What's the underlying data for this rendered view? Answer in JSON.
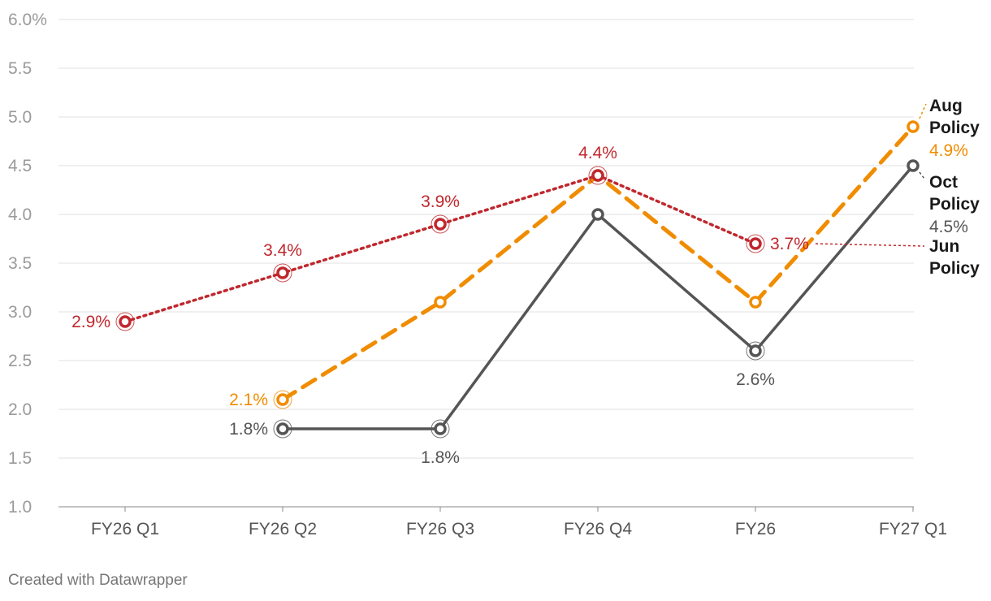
{
  "chart_data": {
    "type": "line",
    "categories": [
      "FY26 Q1",
      "FY26 Q2",
      "FY26 Q3",
      "FY26 Q4",
      "FY26",
      "FY27 Q1"
    ],
    "ylim": [
      1.0,
      6.0
    ],
    "yticks": [
      {
        "value": 1.0,
        "label": "1.0"
      },
      {
        "value": 1.5,
        "label": "1.5"
      },
      {
        "value": 2.0,
        "label": "2.0"
      },
      {
        "value": 2.5,
        "label": "2.5"
      },
      {
        "value": 3.0,
        "label": "3.0"
      },
      {
        "value": 3.5,
        "label": "3.5"
      },
      {
        "value": 4.0,
        "label": "4.0"
      },
      {
        "value": 4.5,
        "label": "4.5"
      },
      {
        "value": 5.0,
        "label": "5.0"
      },
      {
        "value": 5.5,
        "label": "5.5"
      },
      {
        "value": 6.0,
        "label": "6.0%"
      }
    ],
    "series": [
      {
        "name": "Jun Policy",
        "legend_lines": [
          "Jun",
          "Policy"
        ],
        "color": "#c0272d",
        "style": "dotted",
        "values": [
          2.9,
          3.4,
          3.9,
          4.4,
          3.7,
          null
        ],
        "labels": [
          "2.9%",
          "3.4%",
          "3.9%",
          "4.4%",
          "3.7%",
          null
        ]
      },
      {
        "name": "Aug Policy",
        "legend_lines": [
          "Aug",
          "Policy"
        ],
        "color": "#f08c00",
        "style": "dashed",
        "values": [
          null,
          2.1,
          3.1,
          4.4,
          3.1,
          4.9
        ],
        "labels": [
          null,
          "2.1%",
          null,
          null,
          null,
          "4.9%"
        ]
      },
      {
        "name": "Oct Policy",
        "legend_lines": [
          "Oct",
          "Policy"
        ],
        "color": "#555555",
        "style": "solid",
        "values": [
          null,
          1.8,
          1.8,
          4.0,
          2.6,
          4.5
        ],
        "labels": [
          null,
          "1.8%",
          "1.8%",
          null,
          "2.6%",
          "4.5%"
        ]
      }
    ]
  },
  "footer": {
    "credit": "Created with Datawrapper"
  }
}
